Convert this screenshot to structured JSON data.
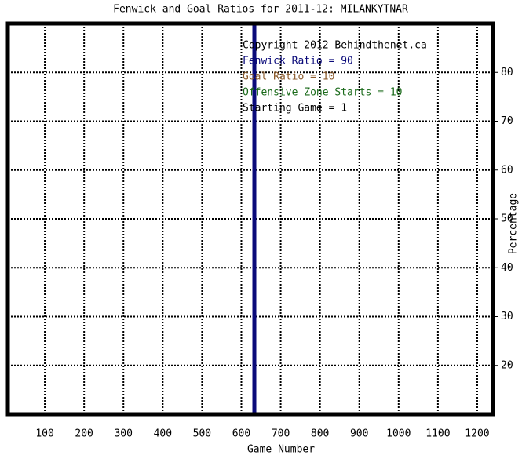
{
  "chart_data": {
    "type": "line",
    "title": "Fenwick and Goal Ratios for 2011-12: MILANKYTNAR",
    "x_label": "Game Number",
    "y_label": "Percentage",
    "xlim": [
      6,
      1240
    ],
    "xticks": [
      100,
      200,
      300,
      400,
      500,
      600,
      700,
      800,
      900,
      1000,
      1100,
      1200
    ],
    "ylim": [
      10,
      90
    ],
    "yticks": [
      20,
      30,
      40,
      50,
      60,
      70,
      80
    ],
    "grid": true,
    "vertical_line": {
      "x": 633,
      "color": "#0a0a7a"
    },
    "annotations": [
      {
        "text": "Copyright 2012 Behindthenet.ca",
        "color": "#000000"
      },
      {
        "text": "Fenwick Ratio = 90",
        "color": "#0a0a7a"
      },
      {
        "text": "Goal Ratio = 10",
        "color": "#8b5a2b"
      },
      {
        "text": "Offensive Zone Starts = 10",
        "color": "#1a6a1a"
      },
      {
        "text": "Starting Game = 1",
        "color": "#000000"
      }
    ]
  }
}
